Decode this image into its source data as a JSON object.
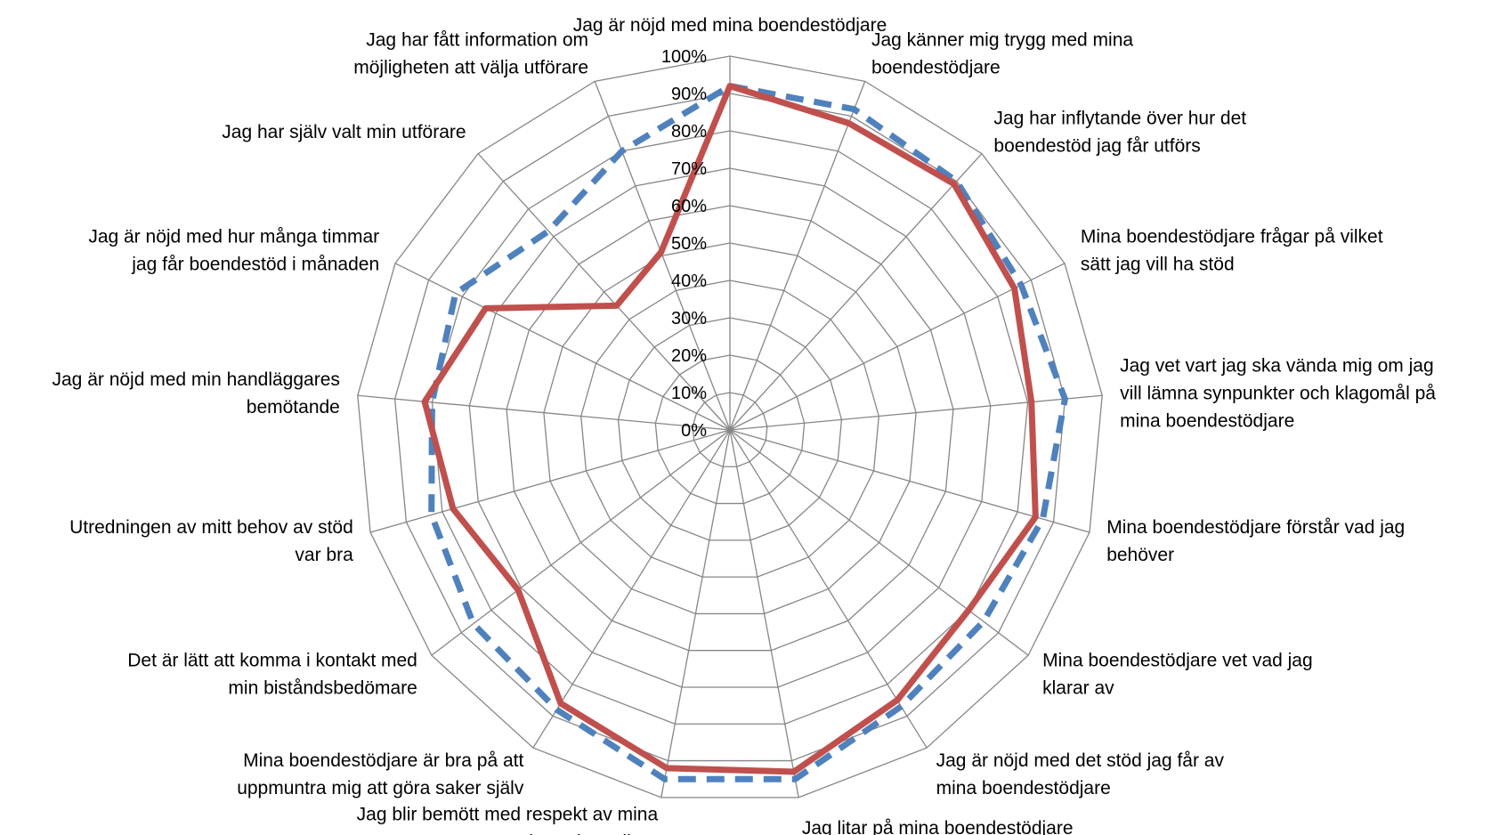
{
  "chart_data": {
    "type": "radar",
    "categories": [
      [
        "Jag är nöjd med mina boendestödjare"
      ],
      [
        "Jag känner mig trygg med mina",
        "boendestödjare"
      ],
      [
        "Jag har inflytande över hur det",
        "boendestöd jag får utförs"
      ],
      [
        "Mina boendestödjare frågar på vilket",
        "sätt jag vill ha stöd"
      ],
      [
        "Jag vet vart jag ska vända mig om jag",
        "vill lämna synpunkter och klagomål på",
        "mina boendestödjare"
      ],
      [
        "Mina boendestödjare förstår vad jag",
        "behöver"
      ],
      [
        "Mina boendestödjare vet vad jag",
        "klarar av"
      ],
      [
        "Jag är nöjd med det stöd jag får av",
        "mina boendestödjare"
      ],
      [
        "Jag litar på mina boendestödjare"
      ],
      [
        "Jag blir bemött med respekt av mina",
        "boendestödjare"
      ],
      [
        "Mina boendestödjare är bra på att",
        "uppmuntra mig att göra saker själv"
      ],
      [
        "Det är lätt att komma i kontakt med",
        "min biståndsbedömare"
      ],
      [
        "Utredningen av mitt behov av stöd",
        "var bra"
      ],
      [
        "Jag är nöjd med min handläggares",
        "bemötande"
      ],
      [
        "Jag är nöjd med hur många timmar",
        "jag får boendestöd i månaden"
      ],
      [
        "Jag har själv valt min utförare"
      ],
      [
        "Jag har fått information om",
        "möjligheten att välja utförare"
      ]
    ],
    "ticks": [
      "0%",
      "10%",
      "20%",
      "30%",
      "40%",
      "50%",
      "60%",
      "70%",
      "80%",
      "90%",
      "100%"
    ],
    "rmin": 0,
    "rmax": 100,
    "series": [
      {
        "values": [
          92,
          92,
          90,
          87,
          90,
          87,
          85,
          87,
          95,
          95,
          88,
          86,
          83,
          80,
          82,
          72,
          80
        ],
        "color": "#4f81bd",
        "dash": true
      },
      {
        "values": [
          92,
          88,
          89,
          85,
          81,
          85,
          80,
          85,
          93,
          92,
          86,
          71,
          77,
          82,
          73,
          45,
          51
        ],
        "color": "#c0504d",
        "dash": false
      }
    ],
    "grid": true
  }
}
